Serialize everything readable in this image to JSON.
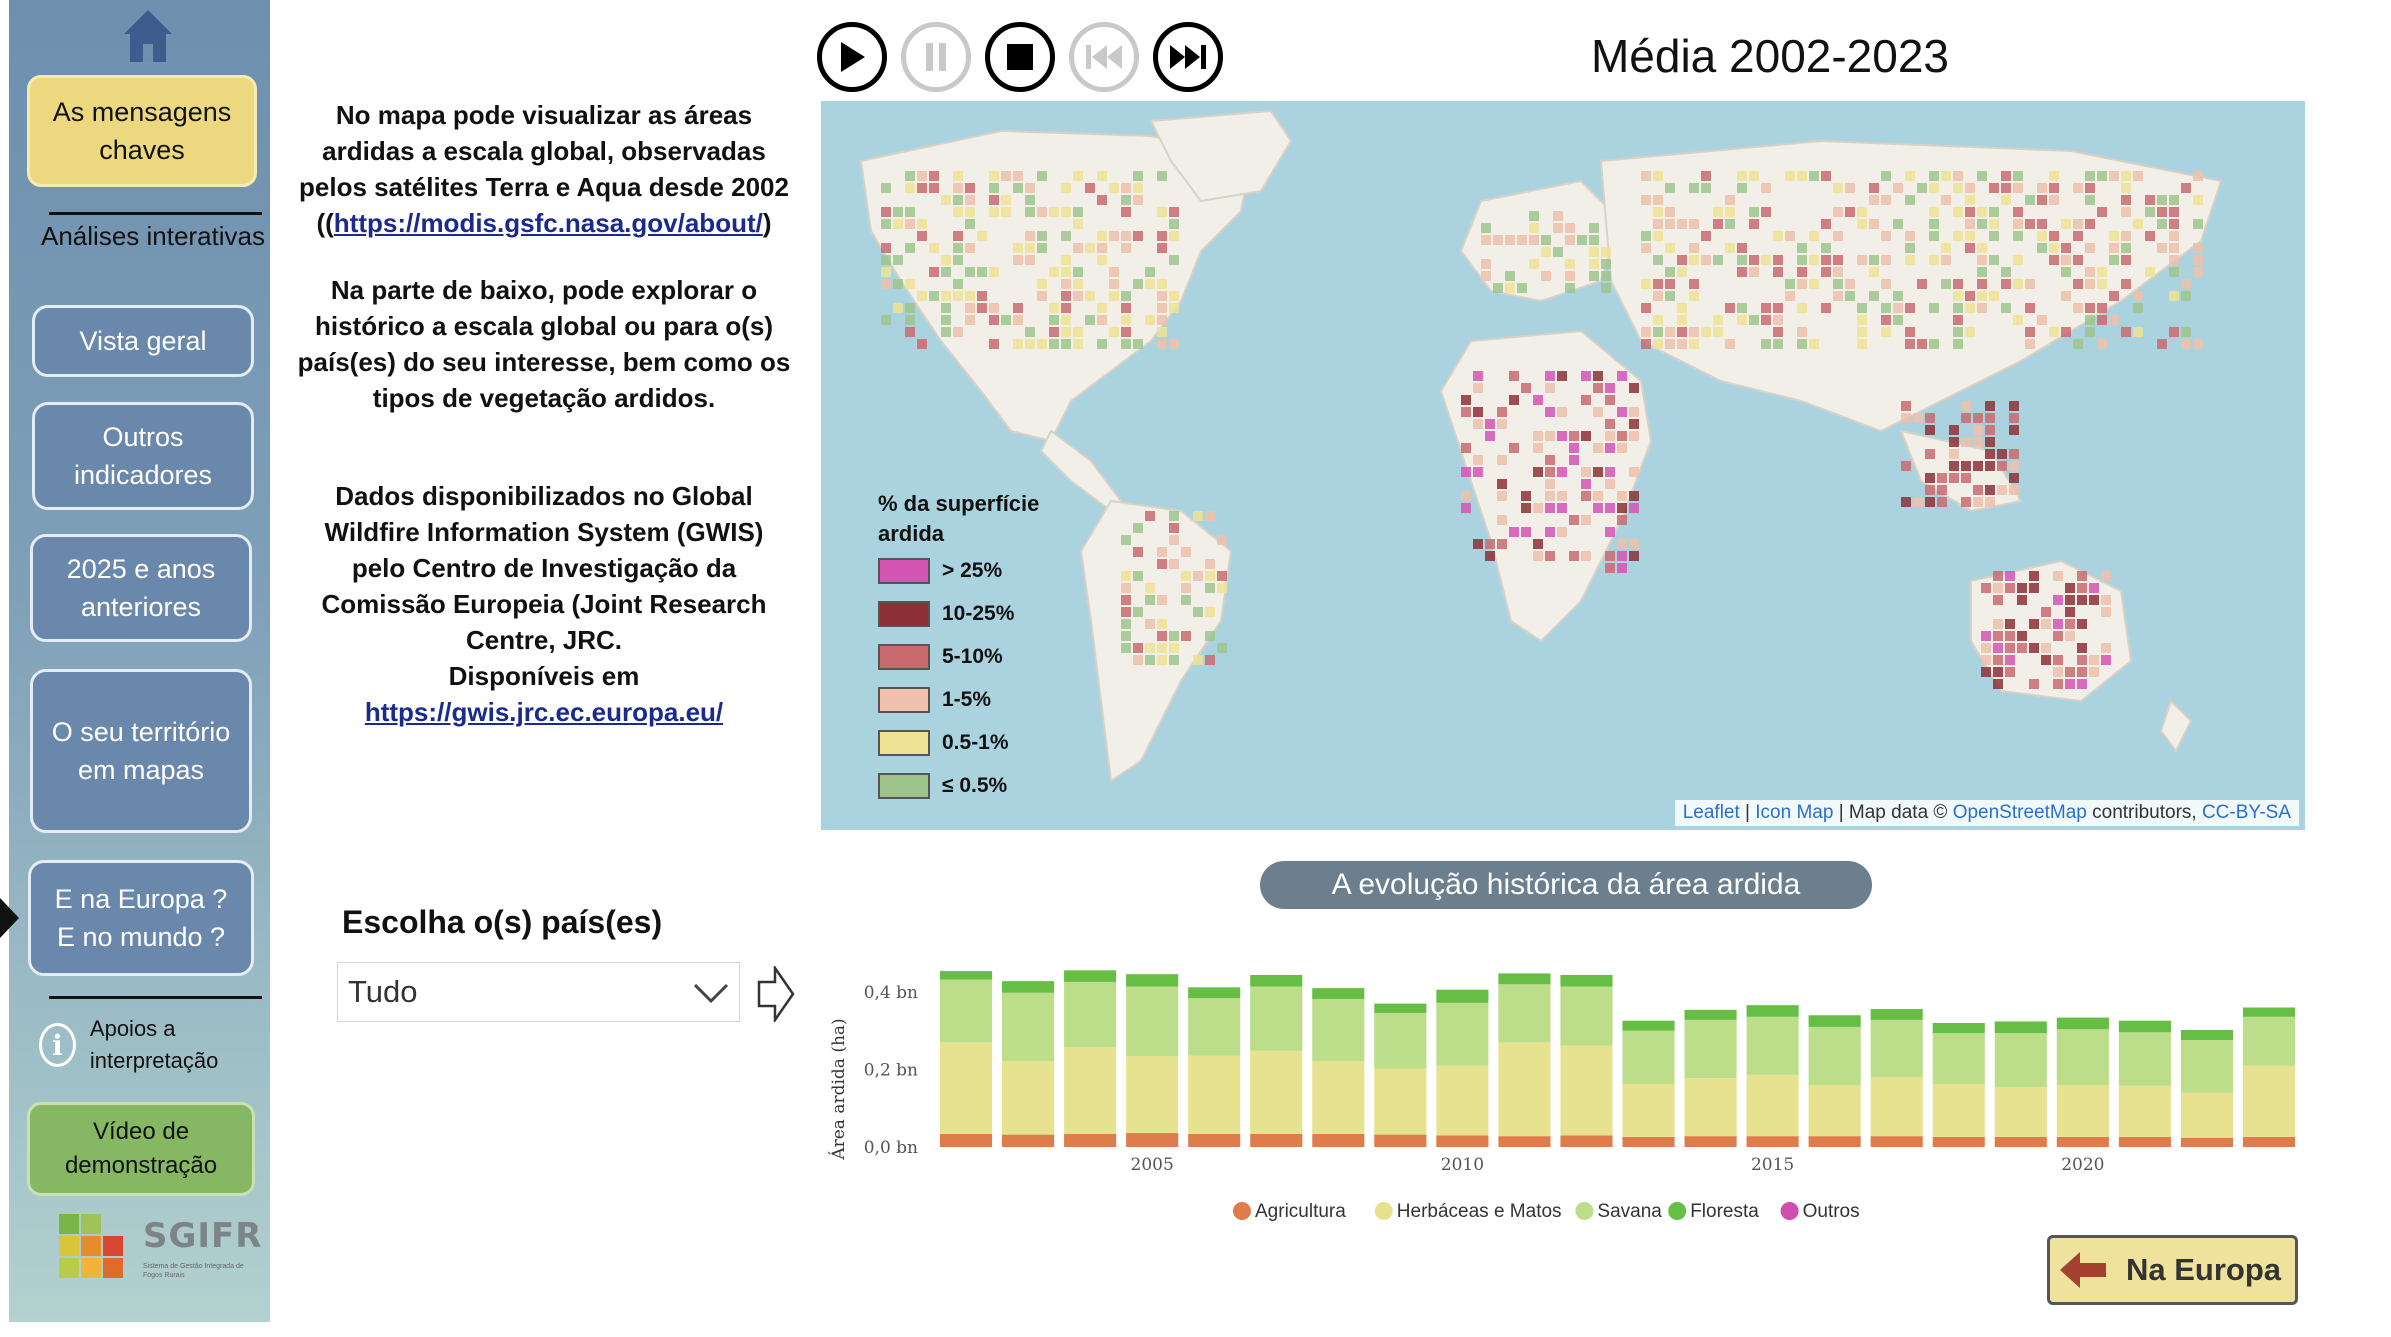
{
  "sidebar": {
    "home_icon": "home-icon",
    "key_messages": "As mensagens chaves",
    "interactive_heading": "Análises interativas",
    "items": [
      {
        "label": "Vista geral"
      },
      {
        "label": "Outros indicadores"
      },
      {
        "label": "2025 e anos anteriores"
      },
      {
        "label": "O seu território em mapas"
      },
      {
        "label": "E na Europa ? E no mundo ?"
      }
    ],
    "support": "Apoios a interpretação",
    "video": "Vídeo de demonstração",
    "logo_text": "SGIFR",
    "logo_sub": "Sistema de Gestão Integrada de Fogos Rurais"
  },
  "intro": {
    "p1": "No mapa pode visualizar as áreas ardidas a escala global, observadas pelos satélites Terra e Aqua desde 2002 ((",
    "p1_link": "https://modis.gsfc.nasa.gov/about/",
    "p1_end": ")",
    "p2": "Na parte de baixo, pode explorar o histórico a escala global ou para o(s) país(es) do seu interesse, bem como os tipos de vegetação ardidos.",
    "p3": "Dados disponibilizados no Global Wildfire Information System (GWIS) pelo Centro de Investigação da Comissão Europeia (Joint Research Centre, JRC.",
    "p3b": "Disponíveis em",
    "p3_link": "https://gwis.jrc.ec.europa.eu/"
  },
  "player": {
    "buttons": [
      "play-icon",
      "pause-icon",
      "stop-icon",
      "skip-back-icon",
      "skip-forward-icon"
    ],
    "title": "Média 2002-2023"
  },
  "map": {
    "legend_title": "% da superfície ardida",
    "legend": [
      {
        "label": "> 25%",
        "color": "#d454b4"
      },
      {
        "label": "10-25%",
        "color": "#8c3036"
      },
      {
        "label": "5-10%",
        "color": "#c96a6e"
      },
      {
        "label": "1-5%",
        "color": "#efc0ac"
      },
      {
        "label": "0.5-1%",
        "color": "#eee394"
      },
      {
        "label": "≤ 0.5%",
        "color": "#9ec48c"
      }
    ],
    "attribution": {
      "leaflet": "Leaflet",
      "sep1": " | ",
      "iconmap": "Icon Map",
      "mid": " | Map data © ",
      "osm": "OpenStreetMap",
      "contrib": " contributors, ",
      "license": "CC-BY-SA"
    }
  },
  "country_select": {
    "title": "Escolha o(s) país(es)",
    "value": "Tudo"
  },
  "back_button": "Na Europa",
  "chart_title": "A evolução histórica da área ardida",
  "chart_data": {
    "type": "bar",
    "stacked": true,
    "title": "A evolução histórica da área ardida",
    "xlabel": "",
    "ylabel": "Área ardida (ha)",
    "categories": [
      2002,
      2003,
      2004,
      2005,
      2006,
      2007,
      2008,
      2009,
      2010,
      2011,
      2012,
      2013,
      2014,
      2015,
      2016,
      2017,
      2018,
      2019,
      2020,
      2021,
      2022,
      2023
    ],
    "x_ticks": [
      2005,
      2010,
      2015,
      2020
    ],
    "y_ticks": [
      "0,0 bn",
      "0,2 bn",
      "0,4 bn"
    ],
    "y_tick_values": [
      0,
      0.2,
      0.4
    ],
    "ylim": [
      0,
      0.48
    ],
    "units": "bn ha",
    "legend_position": "bottom",
    "series": [
      {
        "name": "Agricultura",
        "color": "#de7d4b",
        "values": [
          0.034,
          0.032,
          0.034,
          0.036,
          0.034,
          0.034,
          0.034,
          0.032,
          0.03,
          0.028,
          0.03,
          0.026,
          0.028,
          0.028,
          0.028,
          0.028,
          0.026,
          0.026,
          0.026,
          0.026,
          0.024,
          0.026
        ]
      },
      {
        "name": "Herbáceas e Matos",
        "color": "#e6e28f",
        "values": [
          0.236,
          0.19,
          0.224,
          0.198,
          0.202,
          0.214,
          0.188,
          0.17,
          0.18,
          0.242,
          0.232,
          0.136,
          0.15,
          0.158,
          0.132,
          0.152,
          0.136,
          0.128,
          0.134,
          0.132,
          0.116,
          0.184
        ]
      },
      {
        "name": "Savana",
        "color": "#bcdd8a",
        "values": [
          0.162,
          0.176,
          0.168,
          0.18,
          0.148,
          0.166,
          0.16,
          0.144,
          0.162,
          0.15,
          0.152,
          0.138,
          0.15,
          0.15,
          0.15,
          0.148,
          0.132,
          0.14,
          0.144,
          0.138,
          0.136,
          0.126
        ]
      },
      {
        "name": "Floresta",
        "color": "#66be44",
        "values": [
          0.022,
          0.03,
          0.03,
          0.032,
          0.028,
          0.03,
          0.028,
          0.024,
          0.034,
          0.028,
          0.03,
          0.026,
          0.026,
          0.03,
          0.03,
          0.028,
          0.026,
          0.03,
          0.03,
          0.03,
          0.026,
          0.024
        ]
      },
      {
        "name": "Outros",
        "color": "#d04eb0",
        "values": [
          0,
          0,
          0,
          0,
          0,
          0,
          0,
          0,
          0,
          0,
          0,
          0,
          0,
          0,
          0,
          0,
          0,
          0,
          0,
          0,
          0,
          0
        ]
      }
    ]
  }
}
